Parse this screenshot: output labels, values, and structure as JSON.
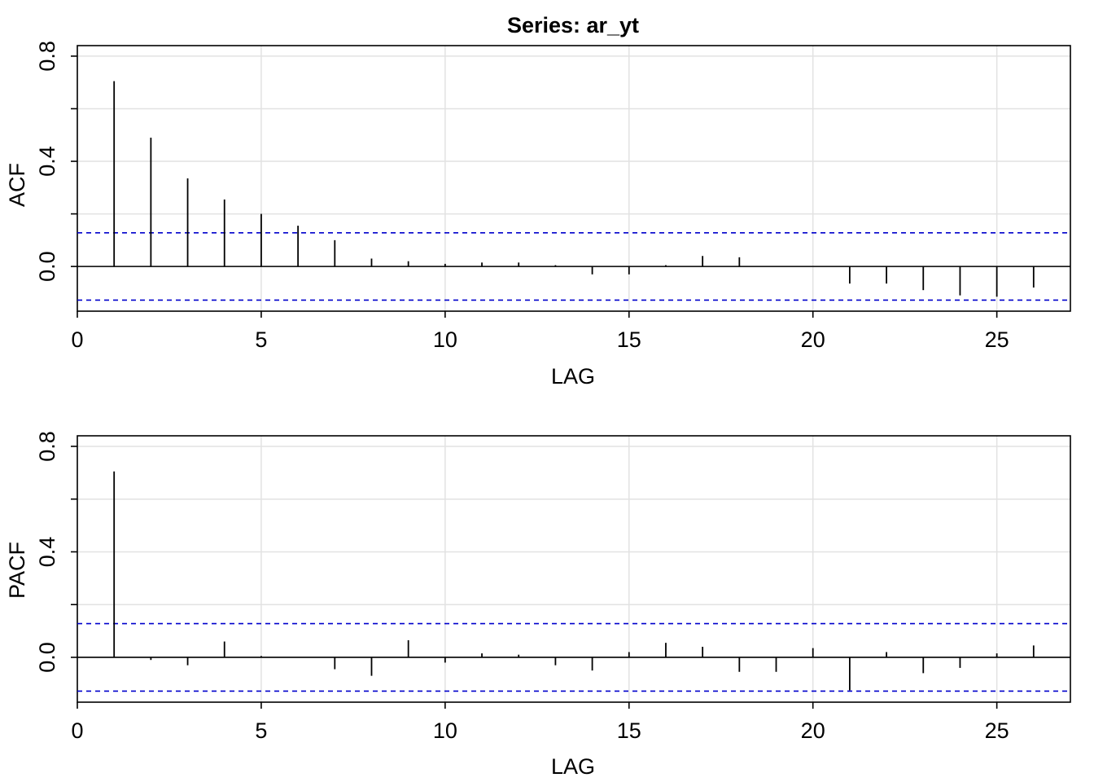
{
  "title": "Series:  ar_yt",
  "chart_data": [
    {
      "type": "bar",
      "ylabel": "ACF",
      "xlabel": "LAG",
      "xlim": [
        0,
        27
      ],
      "ylim": [
        -0.17,
        0.84
      ],
      "xticks": [
        0,
        5,
        10,
        15,
        20,
        25
      ],
      "xtick_labels": [
        "0",
        "5",
        "10",
        "15",
        "20",
        "25"
      ],
      "yticks": [
        0.0,
        0.4,
        0.8
      ],
      "ytick_labels": [
        "0.0",
        "0.4",
        "0.8"
      ],
      "grid": true,
      "confidence_bound": 0.128,
      "confidence_color": "#0000cc",
      "x": [
        1,
        2,
        3,
        4,
        5,
        6,
        7,
        8,
        9,
        10,
        11,
        12,
        13,
        14,
        15,
        16,
        17,
        18,
        19,
        20,
        21,
        22,
        23,
        24,
        25,
        26
      ],
      "values": [
        0.705,
        0.49,
        0.335,
        0.255,
        0.2,
        0.155,
        0.1,
        0.03,
        0.02,
        0.01,
        0.015,
        0.015,
        0.005,
        -0.03,
        -0.03,
        0.005,
        0.04,
        0.035,
        0.0,
        0.0,
        -0.065,
        -0.065,
        -0.09,
        -0.11,
        -0.115,
        -0.08
      ]
    },
    {
      "type": "bar",
      "ylabel": "PACF",
      "xlabel": "LAG",
      "xlim": [
        0,
        27
      ],
      "ylim": [
        -0.17,
        0.84
      ],
      "xticks": [
        0,
        5,
        10,
        15,
        20,
        25
      ],
      "xtick_labels": [
        "0",
        "5",
        "10",
        "15",
        "20",
        "25"
      ],
      "yticks": [
        0.0,
        0.4,
        0.8
      ],
      "ytick_labels": [
        "0.0",
        "0.4",
        "0.8"
      ],
      "grid": true,
      "confidence_bound": 0.128,
      "confidence_color": "#0000cc",
      "x": [
        1,
        2,
        3,
        4,
        5,
        6,
        7,
        8,
        9,
        10,
        11,
        12,
        13,
        14,
        15,
        16,
        17,
        18,
        19,
        20,
        21,
        22,
        23,
        24,
        25,
        26
      ],
      "values": [
        0.705,
        -0.01,
        -0.03,
        0.06,
        0.005,
        0.0,
        -0.045,
        -0.07,
        0.065,
        -0.02,
        0.015,
        0.01,
        -0.03,
        -0.05,
        0.02,
        0.055,
        0.04,
        -0.055,
        -0.055,
        0.035,
        -0.125,
        0.02,
        -0.06,
        -0.04,
        0.015,
        0.045
      ]
    }
  ]
}
